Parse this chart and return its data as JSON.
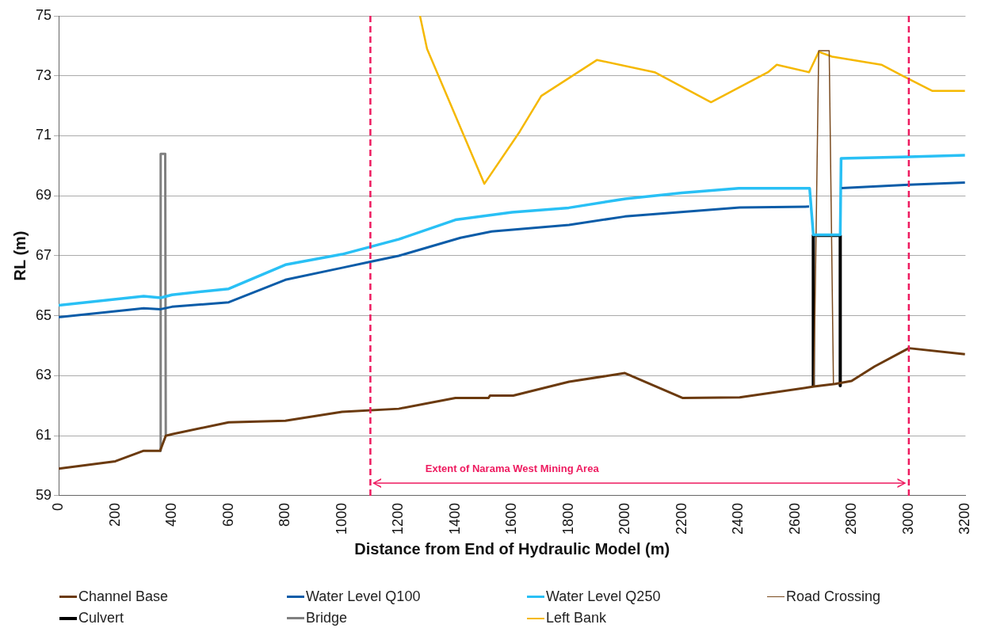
{
  "chart_data": {
    "type": "line",
    "xlabel": "Distance from End of Hydraulic Model (m)",
    "ylabel": "RL (m)",
    "xlim": [
      0,
      3200
    ],
    "xticks": [
      0,
      200,
      400,
      600,
      800,
      1000,
      1200,
      1400,
      1600,
      1800,
      2000,
      2200,
      2400,
      2600,
      2800,
      3000,
      3200
    ],
    "ylim": [
      59,
      75
    ],
    "yticks": [
      59,
      61,
      63,
      65,
      67,
      69,
      71,
      73,
      75
    ],
    "grid": "y",
    "legend": "bottom",
    "marker": "none",
    "line_style": "solid",
    "series": [
      {
        "name": "Channel Base",
        "color": "#6b3a0e",
        "x": [
          0,
          200,
          300,
          358,
          378,
          400,
          600,
          800,
          1000,
          1200,
          1400,
          1517,
          1522,
          1604,
          1801,
          1998,
          2201,
          2403,
          2665,
          2740,
          2798,
          2879,
          3000,
          3198
        ],
        "values": [
          59.9,
          60.15,
          60.5,
          60.5,
          61.0,
          61.05,
          61.45,
          61.5,
          61.8,
          61.9,
          62.26,
          62.26,
          62.34,
          62.34,
          62.8,
          63.09,
          62.26,
          62.28,
          62.64,
          62.73,
          62.83,
          63.31,
          63.92,
          63.72
        ]
      },
      {
        "name": "Water Level Q100",
        "color": "#0a5ca8",
        "x": [
          0,
          300,
          360,
          400,
          600,
          800,
          1000,
          1100,
          1200,
          1418,
          1528,
          1801,
          1998,
          2403,
          2648,
          2700,
          2763,
          3000,
          3198
        ],
        "values": [
          64.95,
          65.25,
          65.22,
          65.3,
          65.45,
          66.2,
          66.6,
          66.8,
          67.0,
          67.6,
          67.81,
          68.03,
          68.31,
          68.61,
          68.64,
          null,
          69.26,
          69.37,
          69.44
        ]
      },
      {
        "name": "Water Level Q250",
        "color": "#29c0f5",
        "x": [
          0,
          300,
          360,
          400,
          600,
          800,
          1000,
          1100,
          1200,
          1400,
          1600,
          1800,
          2000,
          2200,
          2400,
          2650,
          2663,
          2758,
          2761,
          3000,
          3198
        ],
        "values": [
          65.35,
          65.65,
          65.6,
          65.7,
          65.9,
          66.7,
          67.05,
          67.3,
          67.55,
          68.2,
          68.45,
          68.6,
          68.9,
          69.1,
          69.25,
          69.25,
          67.7,
          67.7,
          70.25,
          70.3,
          70.35
        ]
      },
      {
        "name": "Road Crossing",
        "color": "#7a4a1e",
        "x": [
          2665,
          2682,
          2719,
          2734
        ],
        "values": [
          62.65,
          73.84,
          73.84,
          62.73
        ]
      },
      {
        "name": "Culvert",
        "color": "#000000",
        "x": [
          2663,
          2663,
          2758,
          2758
        ],
        "values": [
          62.67,
          67.68,
          67.68,
          62.67
        ]
      },
      {
        "name": "Bridge",
        "color": "#808080",
        "x": [
          358,
          360,
          376,
          378
        ],
        "values": [
          60.5,
          70.4,
          70.4,
          61.0
        ]
      },
      {
        "name": "Left Bank",
        "color": "#f5b800",
        "x": [
          1275,
          1300,
          1502,
          1627,
          1703,
          1900,
          2103,
          2302,
          2503,
          2534,
          2648,
          2682,
          2729,
          2903,
          2972,
          3082,
          3198
        ],
        "values": [
          75,
          73.9,
          69.4,
          71.14,
          72.33,
          73.53,
          73.12,
          72.12,
          73.12,
          73.37,
          73.12,
          73.8,
          73.64,
          73.37,
          73.03,
          72.5,
          72.5
        ]
      }
    ],
    "ref_lines": [
      {
        "axis": "x",
        "value": 1100,
        "color": "#ee1a5f",
        "line_style": "dashed"
      },
      {
        "axis": "x",
        "value": 3000,
        "color": "#ee1a5f",
        "line_style": "dashed"
      }
    ],
    "annotations": [
      "Extent of Narama West Mining Area"
    ]
  }
}
